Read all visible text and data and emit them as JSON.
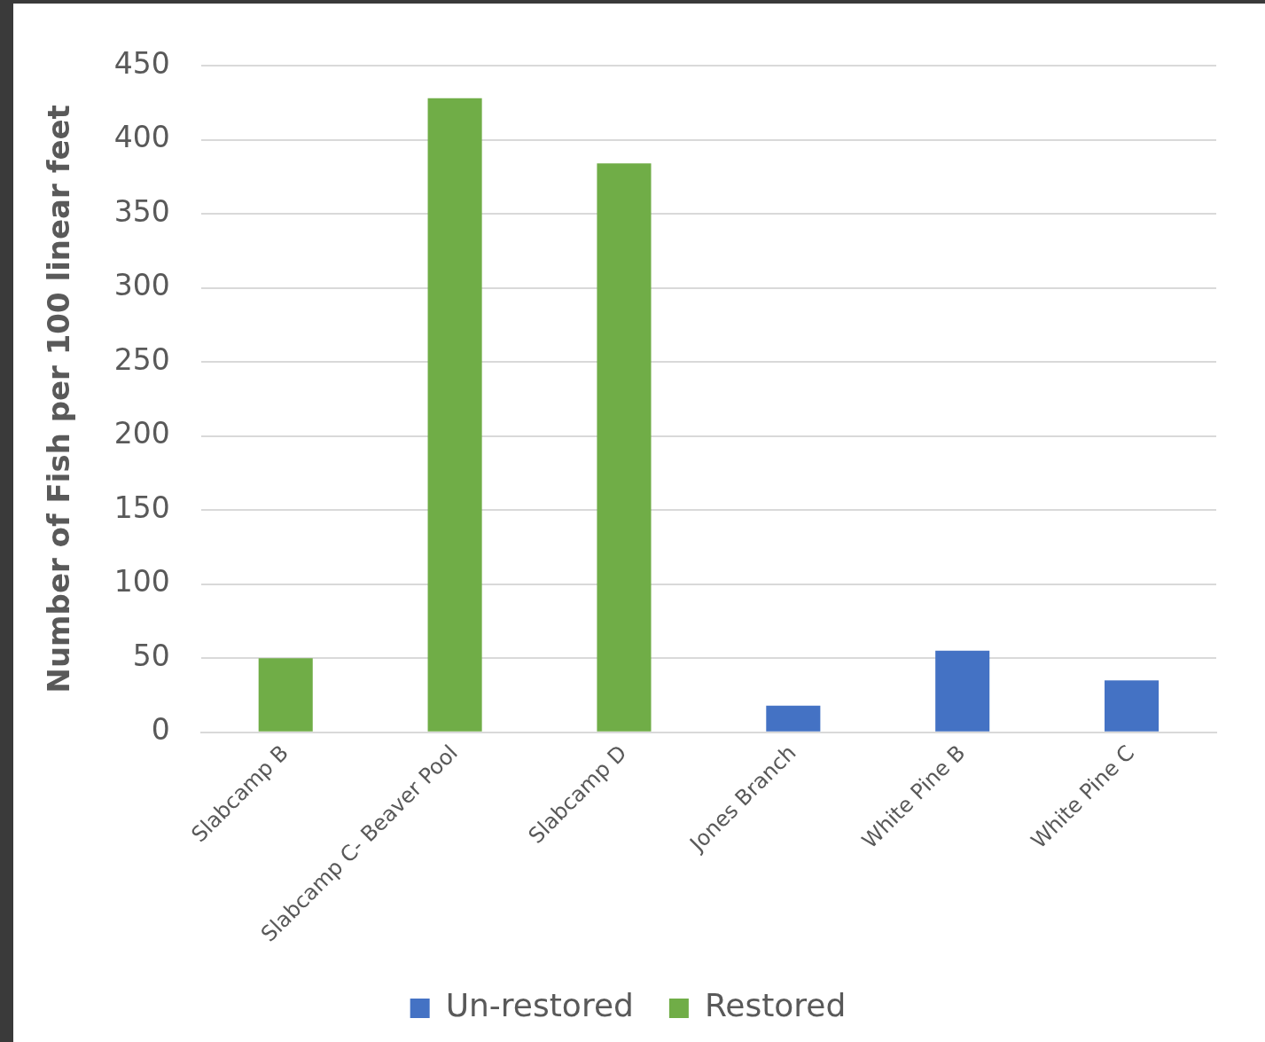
{
  "chart_data": {
    "type": "bar",
    "ylabel": "Number of Fish per 100 linear feet",
    "categories": [
      "Slabcamp B",
      "Slabcamp C- Beaver Pool",
      "Slabcamp D",
      "Jones Branch",
      "White Pine B",
      "White Pine C"
    ],
    "series": [
      {
        "name": "Un-restored",
        "color": "#4472c4",
        "values": [
          null,
          null,
          null,
          18,
          55,
          35
        ]
      },
      {
        "name": "Restored",
        "color": "#70ad47",
        "values": [
          50,
          428,
          384,
          null,
          null,
          null
        ]
      }
    ],
    "ylim": [
      0,
      450
    ],
    "yticks": [
      0,
      50,
      100,
      150,
      200,
      250,
      300,
      350,
      400,
      450
    ],
    "grid": "y",
    "legend": "bottom"
  }
}
